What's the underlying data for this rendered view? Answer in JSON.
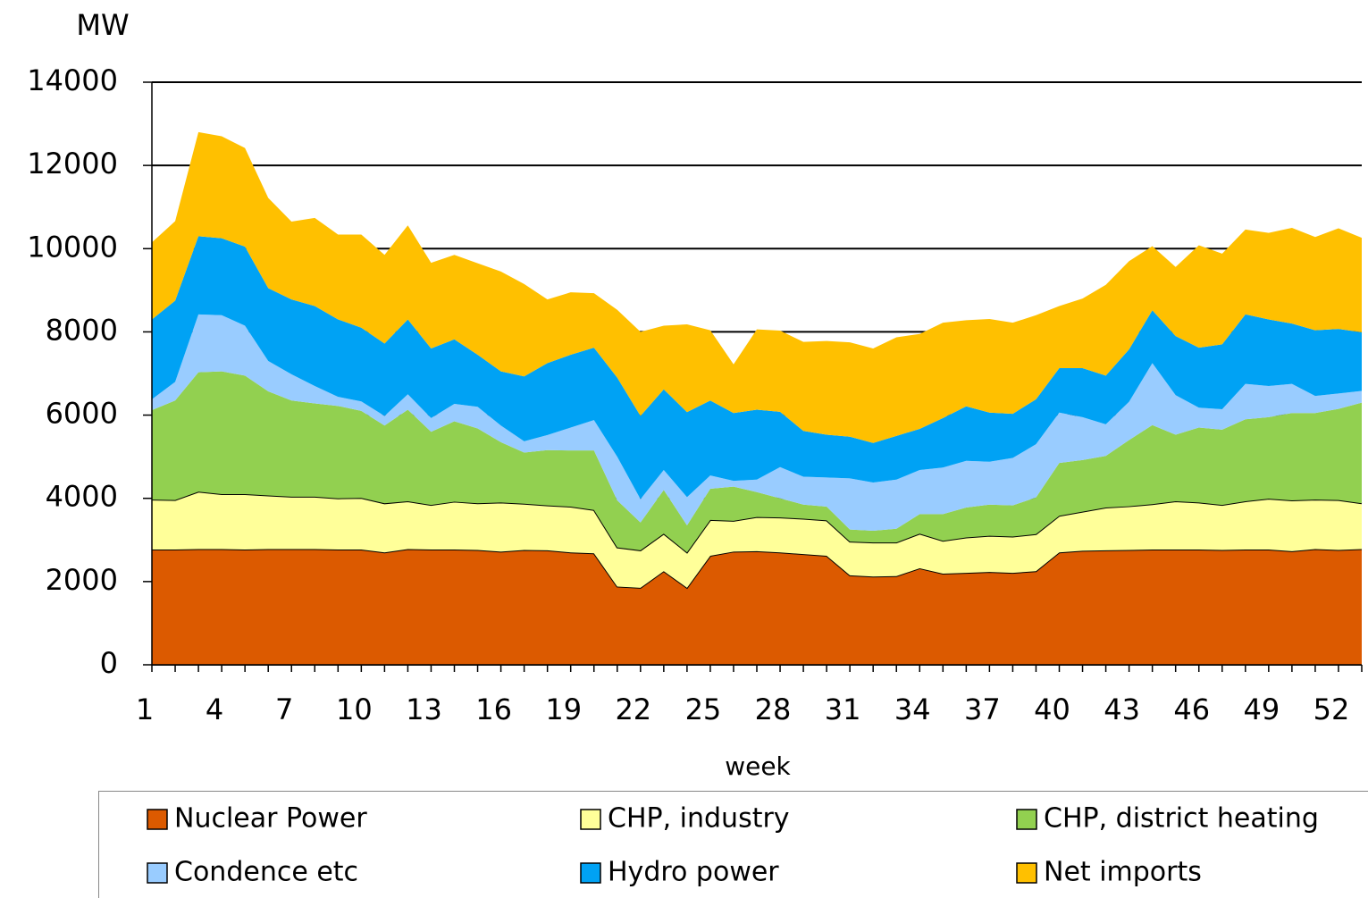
{
  "chart_data": {
    "type": "stacked_area",
    "y_label": "MW",
    "x_label": "week",
    "categories": [
      1,
      null,
      null,
      4,
      null,
      null,
      7,
      null,
      null,
      10,
      null,
      null,
      13,
      null,
      null,
      16,
      null,
      null,
      19,
      null,
      null,
      22,
      null,
      null,
      25,
      null,
      null,
      28,
      null,
      null,
      31,
      null,
      null,
      34,
      null,
      null,
      37,
      null,
      null,
      40,
      null,
      null,
      43,
      null,
      null,
      46,
      null,
      null,
      49,
      null,
      null,
      52,
      null
    ],
    "ylim": [
      0,
      14000
    ],
    "yticks": [
      0,
      2000,
      4000,
      6000,
      8000,
      10000,
      12000,
      14000
    ],
    "grid": true,
    "legend": "bottom",
    "series": [
      {
        "name": "Nuclear Power",
        "color": "#dc5a00",
        "values": [
          2770,
          2770,
          2780,
          2780,
          2770,
          2780,
          2780,
          2780,
          2770,
          2770,
          2700,
          2780,
          2770,
          2770,
          2760,
          2720,
          2760,
          2750,
          2700,
          2680,
          1880,
          1850,
          2250,
          1850,
          2620,
          2720,
          2730,
          2700,
          2660,
          2620,
          2150,
          2120,
          2130,
          2320,
          2190,
          2210,
          2230,
          2210,
          2250,
          2700,
          2740,
          2750,
          2760,
          2770,
          2770,
          2770,
          2760,
          2770,
          2770,
          2730,
          2780,
          2760,
          2780
        ]
      },
      {
        "name": "CHP, industry",
        "color": "#ffff99",
        "values": [
          1200,
          1190,
          1380,
          1320,
          1330,
          1290,
          1260,
          1260,
          1230,
          1240,
          1180,
          1150,
          1070,
          1150,
          1120,
          1180,
          1110,
          1080,
          1100,
          1040,
          940,
          900,
          900,
          850,
          860,
          740,
          820,
          840,
          850,
          850,
          810,
          820,
          810,
          830,
          790,
          850,
          870,
          870,
          890,
          880,
          940,
          1030,
          1050,
          1090,
          1160,
          1130,
          1080,
          1160,
          1220,
          1220,
          1190,
          1200,
          1100
        ]
      },
      {
        "name": "CHP, district heating",
        "color": "#92d050",
        "values": [
          2150,
          2390,
          2870,
          2950,
          2850,
          2500,
          2310,
          2240,
          2220,
          2090,
          1870,
          2200,
          1760,
          1930,
          1800,
          1450,
          1230,
          1330,
          1350,
          1430,
          1130,
          670,
          1050,
          650,
          750,
          820,
          600,
          460,
          340,
          330,
          290,
          280,
          330,
          470,
          640,
          720,
          750,
          750,
          880,
          1270,
          1240,
          1240,
          1590,
          1900,
          1600,
          1800,
          1810,
          1970,
          1960,
          2100,
          2080,
          2190,
          2420
        ]
      },
      {
        "name": "Condence etc",
        "color": "#99ccff",
        "values": [
          260,
          450,
          1390,
          1350,
          1200,
          730,
          630,
          420,
          220,
          230,
          230,
          370,
          330,
          420,
          520,
          400,
          270,
          360,
          550,
          730,
          1050,
          560,
          480,
          680,
          320,
          140,
          300,
          750,
          670,
          700,
          1230,
          1160,
          1180,
          1060,
          1120,
          1120,
          1030,
          1140,
          1280,
          1210,
          1030,
          760,
          920,
          1490,
          950,
          480,
          490,
          850,
          750,
          700,
          410,
          370,
          280
        ]
      },
      {
        "name": "Hydro power",
        "color": "#00a2f4",
        "values": [
          1920,
          1950,
          1880,
          1850,
          1900,
          1750,
          1800,
          1920,
          1860,
          1770,
          1740,
          1800,
          1670,
          1550,
          1250,
          1300,
          1560,
          1730,
          1750,
          1740,
          1900,
          2000,
          1940,
          2040,
          1800,
          1630,
          1680,
          1330,
          1100,
          1030,
          1000,
          950,
          1050,
          990,
          1190,
          1310,
          1180,
          1060,
          1080,
          1070,
          1180,
          1170,
          1260,
          1270,
          1420,
          1440,
          1560,
          1670,
          1600,
          1450,
          1580,
          1550,
          1410
        ]
      },
      {
        "name": "Net imports",
        "color": "#ffc000",
        "values": [
          1850,
          1910,
          2500,
          2450,
          2370,
          2170,
          1870,
          2120,
          2040,
          2240,
          2130,
          2260,
          2060,
          2030,
          2200,
          2400,
          2220,
          1530,
          1500,
          1310,
          1630,
          2020,
          1530,
          2110,
          1690,
          1170,
          1930,
          1950,
          2140,
          2250,
          2270,
          2270,
          2370,
          2280,
          2290,
          2070,
          2250,
          2190,
          2020,
          1490,
          1670,
          2180,
          2120,
          1540,
          1660,
          2460,
          2180,
          2040,
          2080,
          2300,
          2240,
          2420,
          2270
        ]
      }
    ]
  }
}
